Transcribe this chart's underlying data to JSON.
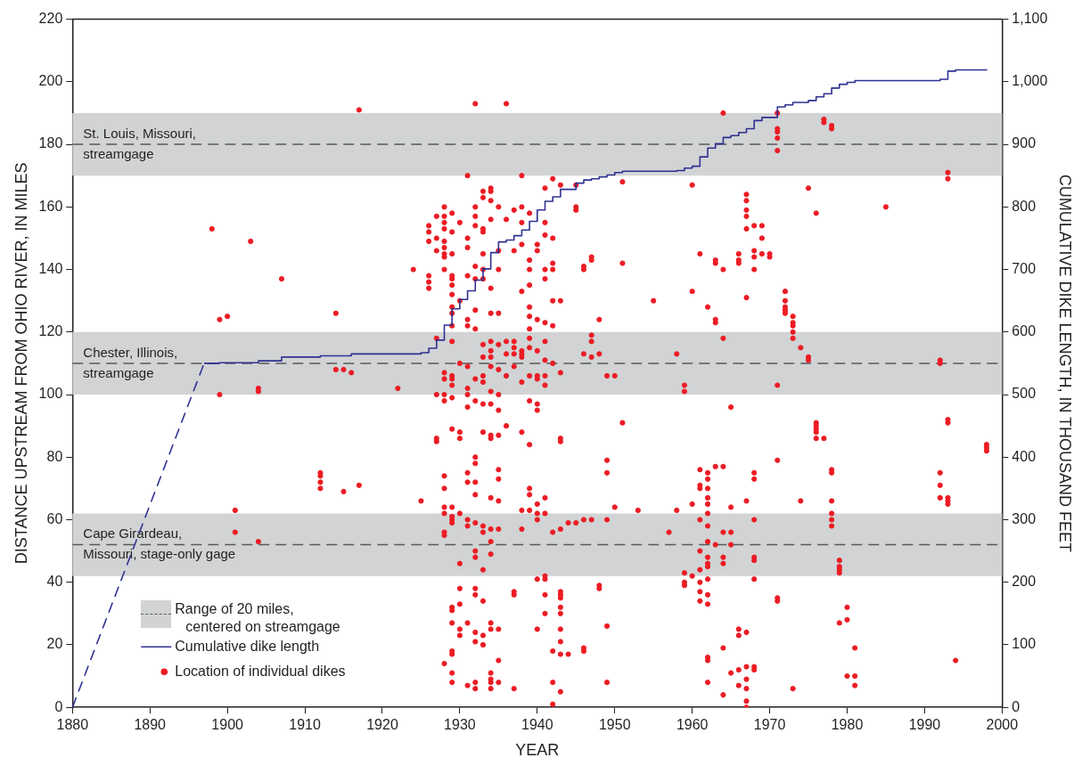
{
  "chart_data": {
    "type": "scatter",
    "xlabel": "YEAR",
    "ylabel": "DISTANCE UPSTREAM FROM OHIO RIVER, IN MILES",
    "y2label": "CUMULATIVE DIKE LENGTH, IN THOUSAND FEET",
    "xlim": [
      1880,
      2000
    ],
    "xticks": [
      1880,
      1890,
      1900,
      1910,
      1920,
      1930,
      1940,
      1950,
      1960,
      1970,
      1980,
      1990,
      2000
    ],
    "ylim": [
      0,
      220
    ],
    "yticks": [
      0,
      20,
      40,
      60,
      80,
      100,
      120,
      140,
      160,
      180,
      200,
      220
    ],
    "y2lim": [
      0,
      1100
    ],
    "y2ticks": [
      0,
      100,
      200,
      300,
      400,
      500,
      600,
      700,
      800,
      900,
      {
        "value": 1000,
        "label": "1,000"
      },
      {
        "value": 1100,
        "label": "1,100"
      }
    ],
    "grid": false,
    "legend": "bottom left",
    "bands": [
      {
        "axis": "y",
        "from": 170,
        "to": 190,
        "label": "St. Louis, Missouri, streamgage",
        "color": "#d1d3d4"
      },
      {
        "axis": "y",
        "from": 100,
        "to": 120,
        "label": "Chester, Illinois, streamgage",
        "color": "#d1d3d4"
      },
      {
        "axis": "y",
        "from": 42,
        "to": 62,
        "label": "Cape Girardeau, Missouri, stage-only gage",
        "color": "#d1d3d4"
      }
    ],
    "ref_lines": [
      {
        "axis": "y",
        "value": 180,
        "color": "#58595b",
        "line_style": "dashed"
      },
      {
        "axis": "y",
        "value": 110,
        "color": "#58595b",
        "line_style": "dashed"
      },
      {
        "axis": "y",
        "value": 52,
        "color": "#58595b",
        "line_style": "dashed"
      }
    ],
    "annotations": [
      "Range of 20 miles, centered on streamgage"
    ],
    "series": [
      {
        "type": "line",
        "axis": "y2",
        "color": "#2e3192",
        "line_style": "dashed",
        "marker": "none",
        "x": [
          1880,
          1897
        ],
        "values": [
          0,
          550
        ]
      },
      {
        "name": "Cumulative dike length",
        "type": "step",
        "axis": "y2",
        "color": "#2e3192",
        "marker": "none",
        "x": [
          1897,
          1899,
          1904,
          1907,
          1912,
          1916,
          1925,
          1926,
          1927,
          1928,
          1929,
          1930,
          1931,
          1932,
          1933,
          1934,
          1935,
          1936,
          1937,
          1938,
          1939,
          1940,
          1941,
          1942,
          1943,
          1945,
          1946,
          1947,
          1948,
          1949,
          1950,
          1951,
          1958,
          1959,
          1960,
          1961,
          1962,
          1963,
          1964,
          1965,
          1966,
          1967,
          1968,
          1969,
          1971,
          1972,
          1973,
          1975,
          1976,
          1977,
          1978,
          1979,
          1980,
          1981,
          1992,
          1993,
          1994,
          1998
        ],
        "values": [
          550,
          551,
          554,
          560,
          562,
          565,
          567,
          574,
          587,
          611,
          637,
          652,
          666,
          683,
          701,
          727,
          744,
          747,
          754,
          763,
          777,
          795,
          809,
          816,
          828,
          838,
          843,
          845,
          848,
          851,
          855,
          857,
          858,
          862,
          865,
          880,
          894,
          901,
          911,
          914,
          919,
          925,
          938,
          943,
          960,
          963,
          967,
          970,
          976,
          981,
          990,
          996,
          999,
          1002,
          1004,
          1017,
          1019,
          1020
        ]
      },
      {
        "name": "Location of individual dikes",
        "type": "scatter",
        "color": "#ed1c24",
        "marker": "circle",
        "x": [
          1898,
          1899,
          1899,
          1900,
          1901,
          1901,
          1903,
          1904,
          1904,
          1904,
          1907,
          1912,
          1912,
          1912,
          1912,
          1914,
          1914,
          1915,
          1915,
          1916,
          1917,
          1917,
          1922,
          1924,
          1925,
          1926,
          1926,
          1926,
          1926,
          1926,
          1926,
          1927,
          1927,
          1927,
          1927,
          1927,
          1927,
          1927,
          1928,
          1928,
          1928,
          1928,
          1928,
          1928,
          1928,
          1928,
          1928,
          1928,
          1928,
          1928,
          1928,
          1928,
          1928,
          1928,
          1928,
          1928,
          1928,
          1928,
          1929,
          1929,
          1929,
          1929,
          1929,
          1929,
          1929,
          1929,
          1929,
          1929,
          1929,
          1929,
          1929,
          1929,
          1929,
          1929,
          1929,
          1929,
          1929,
          1929,
          1929,
          1929,
          1929,
          1929,
          1929,
          1929,
          1929,
          1930,
          1930,
          1930,
          1930,
          1930,
          1930,
          1930,
          1930,
          1930,
          1930,
          1930,
          1931,
          1931,
          1931,
          1931,
          1931,
          1931,
          1931,
          1931,
          1931,
          1931,
          1931,
          1931,
          1931,
          1931,
          1931,
          1931,
          1932,
          1932,
          1932,
          1932,
          1932,
          1932,
          1932,
          1932,
          1932,
          1932,
          1932,
          1932,
          1932,
          1932,
          1932,
          1932,
          1932,
          1932,
          1932,
          1932,
          1932,
          1932,
          1932,
          1933,
          1933,
          1933,
          1933,
          1933,
          1933,
          1933,
          1933,
          1933,
          1933,
          1933,
          1933,
          1933,
          1933,
          1933,
          1933,
          1933,
          1933,
          1933,
          1934,
          1934,
          1934,
          1934,
          1934,
          1934,
          1934,
          1934,
          1934,
          1934,
          1934,
          1934,
          1934,
          1934,
          1934,
          1934,
          1934,
          1934,
          1934,
          1934,
          1934,
          1934,
          1934,
          1934,
          1935,
          1935,
          1935,
          1935,
          1935,
          1935,
          1935,
          1935,
          1935,
          1935,
          1935,
          1935,
          1935,
          1935,
          1935,
          1935,
          1936,
          1936,
          1936,
          1936,
          1936,
          1936,
          1937,
          1937,
          1937,
          1937,
          1937,
          1937,
          1937,
          1937,
          1937,
          1938,
          1938,
          1938,
          1938,
          1938,
          1938,
          1938,
          1938,
          1938,
          1938,
          1938,
          1938,
          1939,
          1939,
          1939,
          1939,
          1939,
          1939,
          1939,
          1939,
          1939,
          1939,
          1939,
          1939,
          1939,
          1939,
          1939,
          1940,
          1940,
          1940,
          1940,
          1940,
          1940,
          1940,
          1940,
          1940,
          1940,
          1940,
          1940,
          1940,
          1941,
          1941,
          1941,
          1941,
          1941,
          1941,
          1941,
          1941,
          1941,
          1941,
          1941,
          1941,
          1941,
          1941,
          1941,
          1941,
          1942,
          1942,
          1942,
          1942,
          1942,
          1942,
          1942,
          1942,
          1942,
          1942,
          1942,
          1943,
          1943,
          1943,
          1943,
          1943,
          1943,
          1943,
          1943,
          1943,
          1943,
          1943,
          1943,
          1943,
          1943,
          1943,
          1944,
          1944,
          1945,
          1945,
          1945,
          1945,
          1946,
          1946,
          1946,
          1946,
          1946,
          1946,
          1947,
          1947,
          1947,
          1947,
          1947,
          1947,
          1948,
          1948,
          1948,
          1948,
          1949,
          1949,
          1949,
          1949,
          1949,
          1949,
          1950,
          1950,
          1951,
          1951,
          1951,
          1953,
          1955,
          1957,
          1958,
          1958,
          1959,
          1959,
          1959,
          1959,
          1959,
          1960,
          1960,
          1960,
          1960,
          1961,
          1961,
          1961,
          1961,
          1961,
          1961,
          1961,
          1961,
          1961,
          1961,
          1962,
          1962,
          1962,
          1962,
          1962,
          1962,
          1962,
          1962,
          1962,
          1962,
          1962,
          1962,
          1962,
          1962,
          1962,
          1962,
          1962,
          1962,
          1963,
          1963,
          1963,
          1963,
          1963,
          1963,
          1964,
          1964,
          1964,
          1964,
          1964,
          1964,
          1964,
          1964,
          1964,
          1965,
          1965,
          1965,
          1965,
          1965,
          1966,
          1966,
          1966,
          1966,
          1966,
          1966,
          1966,
          1967,
          1967,
          1967,
          1967,
          1967,
          1967,
          1967,
          1967,
          1967,
          1967,
          1967,
          1967,
          1967,
          1968,
          1968,
          1968,
          1968,
          1968,
          1968,
          1968,
          1968,
          1968,
          1968,
          1968,
          1968,
          1969,
          1969,
          1969,
          1970,
          1970,
          1971,
          1971,
          1971,
          1971,
          1971,
          1971,
          1971,
          1971,
          1971,
          1972,
          1972,
          1972,
          1972,
          1972,
          1973,
          1973,
          1973,
          1973,
          1973,
          1973,
          1974,
          1974,
          1975,
          1975,
          1975,
          1976,
          1976,
          1976,
          1976,
          1976,
          1976,
          1977,
          1977,
          1977,
          1978,
          1978,
          1978,
          1978,
          1978,
          1978,
          1978,
          1978,
          1979,
          1979,
          1979,
          1979,
          1979,
          1980,
          1980,
          1980,
          1981,
          1981,
          1981,
          1985,
          1992,
          1992,
          1992,
          1992,
          1992,
          1993,
          1993,
          1993,
          1993,
          1993,
          1993,
          1993,
          1994,
          1998,
          1998,
          1998
        ],
        "values": [
          153,
          124,
          100,
          125,
          63,
          56,
          149,
          102,
          101,
          53,
          137,
          75,
          74,
          72,
          70,
          126,
          108,
          108,
          69,
          107,
          191,
          71,
          102,
          140,
          66,
          154,
          152,
          149,
          138,
          136,
          134,
          157,
          150,
          146,
          118,
          100,
          86,
          85,
          160,
          157,
          155,
          153,
          149,
          147,
          145,
          144,
          140,
          107,
          105,
          100,
          98,
          74,
          70,
          64,
          62,
          56,
          55,
          14,
          158,
          152,
          145,
          138,
          137,
          135,
          132,
          128,
          126,
          122,
          117,
          106,
          105,
          103,
          99,
          89,
          64,
          61,
          60,
          59,
          32,
          31,
          27,
          18,
          17,
          11,
          8,
          155,
          130,
          110,
          88,
          86,
          62,
          46,
          38,
          33,
          25,
          23,
          170,
          150,
          147,
          138,
          124,
          122,
          109,
          102,
          100,
          96,
          75,
          72,
          60,
          58,
          27,
          7,
          193,
          160,
          157,
          154,
          141,
          137,
          127,
          121,
          105,
          98,
          80,
          78,
          72,
          68,
          59,
          50,
          48,
          38,
          36,
          24,
          21,
          8,
          6,
          165,
          163,
          153,
          152,
          145,
          140,
          137,
          116,
          112,
          106,
          104,
          97,
          88,
          58,
          56,
          44,
          34,
          23,
          20,
          166,
          165,
          162,
          156,
          134,
          126,
          117,
          114,
          112,
          109,
          101,
          97,
          87,
          86,
          67,
          57,
          53,
          49,
          27,
          25,
          11,
          9,
          8,
          6,
          160,
          146,
          140,
          126,
          116,
          108,
          100,
          95,
          87,
          76,
          73,
          66,
          57,
          25,
          15,
          8,
          193,
          156,
          117,
          113,
          106,
          90,
          159,
          146,
          117,
          115,
          113,
          109,
          37,
          36,
          6,
          170,
          160,
          155,
          148,
          133,
          114,
          113,
          112,
          104,
          88,
          63,
          57,
          158,
          143,
          140,
          135,
          128,
          125,
          121,
          118,
          115,
          106,
          98,
          84,
          70,
          68,
          63,
          148,
          146,
          124,
          114,
          106,
          105,
          97,
          95,
          65,
          62,
          60,
          41,
          25,
          166,
          155,
          151,
          140,
          137,
          123,
          117,
          111,
          106,
          103,
          67,
          62,
          42,
          41,
          36,
          30,
          169,
          150,
          142,
          140,
          130,
          122,
          110,
          56,
          18,
          8,
          1,
          167,
          130,
          107,
          86,
          85,
          57,
          37,
          36,
          35,
          32,
          30,
          25,
          21,
          17,
          5,
          59,
          17,
          167,
          160,
          159,
          59,
          141,
          140,
          113,
          60,
          19,
          18,
          144,
          143,
          119,
          117,
          112,
          60,
          124,
          113,
          39,
          38,
          106,
          79,
          75,
          60,
          26,
          8,
          106,
          64,
          168,
          142,
          91,
          63,
          130,
          56,
          113,
          63,
          103,
          101,
          43,
          40,
          39,
          167,
          133,
          65,
          42,
          145,
          76,
          71,
          70,
          60,
          50,
          44,
          40,
          37,
          34,
          128,
          75,
          73,
          70,
          67,
          65,
          62,
          58,
          53,
          48,
          46,
          45,
          41,
          36,
          33,
          16,
          15,
          8,
          143,
          142,
          124,
          123,
          77,
          52,
          190,
          140,
          118,
          77,
          56,
          48,
          46,
          19,
          4,
          96,
          64,
          56,
          52,
          11,
          145,
          143,
          142,
          25,
          23,
          12,
          7,
          164,
          162,
          159,
          157,
          153,
          131,
          66,
          24,
          13,
          9,
          6,
          2,
          0,
          154,
          146,
          144,
          140,
          75,
          73,
          60,
          48,
          47,
          41,
          13,
          12,
          154,
          150,
          145,
          145,
          144,
          190,
          185,
          184,
          182,
          178,
          103,
          79,
          35,
          34,
          133,
          130,
          128,
          127,
          126,
          125,
          123,
          122,
          120,
          118,
          6,
          115,
          66,
          166,
          112,
          111,
          158,
          91,
          90,
          89,
          88,
          86,
          188,
          187,
          86,
          186,
          185,
          76,
          75,
          66,
          62,
          60,
          58,
          47,
          45,
          44,
          43,
          27,
          32,
          28,
          10,
          19,
          10,
          7,
          160,
          111,
          110,
          75,
          71,
          67,
          171,
          169,
          92,
          91,
          67,
          66,
          65,
          15,
          84,
          83,
          82
        ]
      }
    ]
  }
}
